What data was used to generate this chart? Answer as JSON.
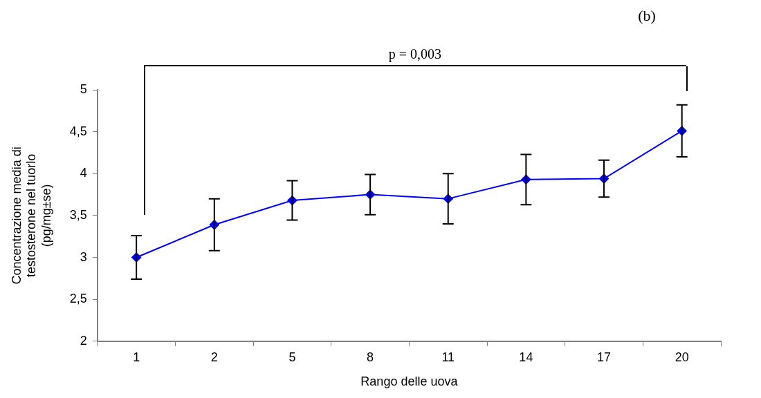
{
  "chart_data": {
    "type": "line",
    "xlabel": "Rango delle uova",
    "ylabel": "Concentrazione media di\ntestosterone nel tuorlo\n(pg/mg±se)",
    "categories": [
      "1",
      "2",
      "5",
      "8",
      "11",
      "14",
      "17",
      "20"
    ],
    "series": [
      {
        "color": "#0000ff",
        "values": [
          3.0,
          3.39,
          3.68,
          3.75,
          3.7,
          3.93,
          3.94,
          4.51
        ],
        "errors": [
          0.26,
          0.31,
          0.235,
          0.24,
          0.3,
          0.3,
          0.22,
          0.31
        ]
      }
    ],
    "ylim": [
      2,
      5
    ],
    "yticks": [
      {
        "value": 2,
        "label": "2"
      },
      {
        "value": 2.5,
        "label": "2,5"
      },
      {
        "value": 3,
        "label": "3"
      },
      {
        "value": 3.5,
        "label": "3,5"
      },
      {
        "value": 4,
        "label": "4"
      },
      {
        "value": 4.5,
        "label": "4,5"
      },
      {
        "value": 5,
        "label": "5"
      }
    ],
    "marker": "diamond",
    "grid": false,
    "legend": false,
    "annotations": [
      "(b)",
      "p = 0,003"
    ]
  }
}
